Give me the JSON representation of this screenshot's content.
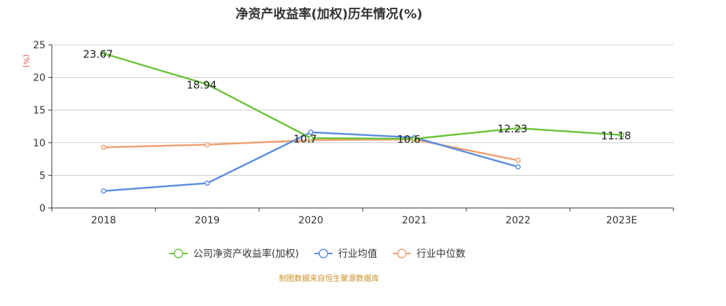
{
  "chart_data": {
    "type": "line",
    "title": "净资产收益率(加权)历年情况(%)",
    "ylabel": "(%)",
    "xlabel": "",
    "categories": [
      "2018",
      "2019",
      "2020",
      "2021",
      "2022",
      "2023E"
    ],
    "ylim": [
      0,
      25
    ],
    "yticks": [
      0,
      5,
      10,
      15,
      20,
      25
    ],
    "grid": true,
    "legend_position": "bottom",
    "series": [
      {
        "name": "公司净资产收益率(加权)",
        "color": "#6ac43a",
        "values": [
          23.67,
          18.94,
          10.7,
          10.6,
          12.23,
          11.18
        ],
        "labels": [
          "23.67",
          "18.94",
          "10.7",
          "10.6",
          "12.23",
          "11.18"
        ]
      },
      {
        "name": "行业均值",
        "color": "#5b8ee0",
        "values": [
          2.6,
          3.8,
          11.6,
          10.8,
          6.3,
          null
        ]
      },
      {
        "name": "行业中位数",
        "color": "#f0a070",
        "values": [
          9.3,
          9.7,
          10.4,
          10.5,
          7.3,
          null
        ]
      }
    ]
  },
  "footer": {
    "source": "制图数据来自恒生聚源数据库"
  }
}
